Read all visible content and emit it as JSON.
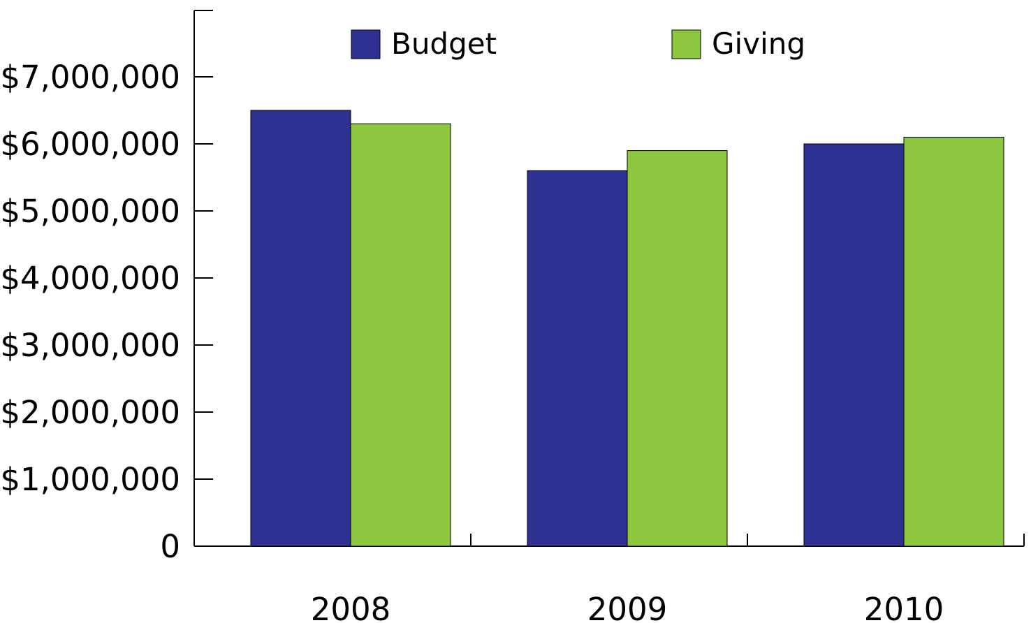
{
  "chart_data": {
    "type": "bar",
    "title": "",
    "xlabel": "",
    "ylabel": "",
    "categories": [
      "2008",
      "2009",
      "2010"
    ],
    "series": [
      {
        "name": "Budget",
        "color": "#2e3192",
        "values": [
          6500000,
          5600000,
          6000000
        ]
      },
      {
        "name": "Giving",
        "color": "#8dc63f",
        "values": [
          6300000,
          5900000,
          6100000
        ]
      }
    ],
    "ylim": [
      0,
      8000000
    ],
    "y_ticks": [
      0,
      1000000,
      2000000,
      3000000,
      4000000,
      5000000,
      6000000,
      7000000
    ],
    "y_tick_labels": [
      "0",
      "$1,000,000",
      "$2,000,000",
      "$3,000,000",
      "$4,000,000",
      "$5,000,000",
      "$6,000,000",
      "$7,000,000"
    ],
    "grid": false,
    "legend_position": "top"
  }
}
